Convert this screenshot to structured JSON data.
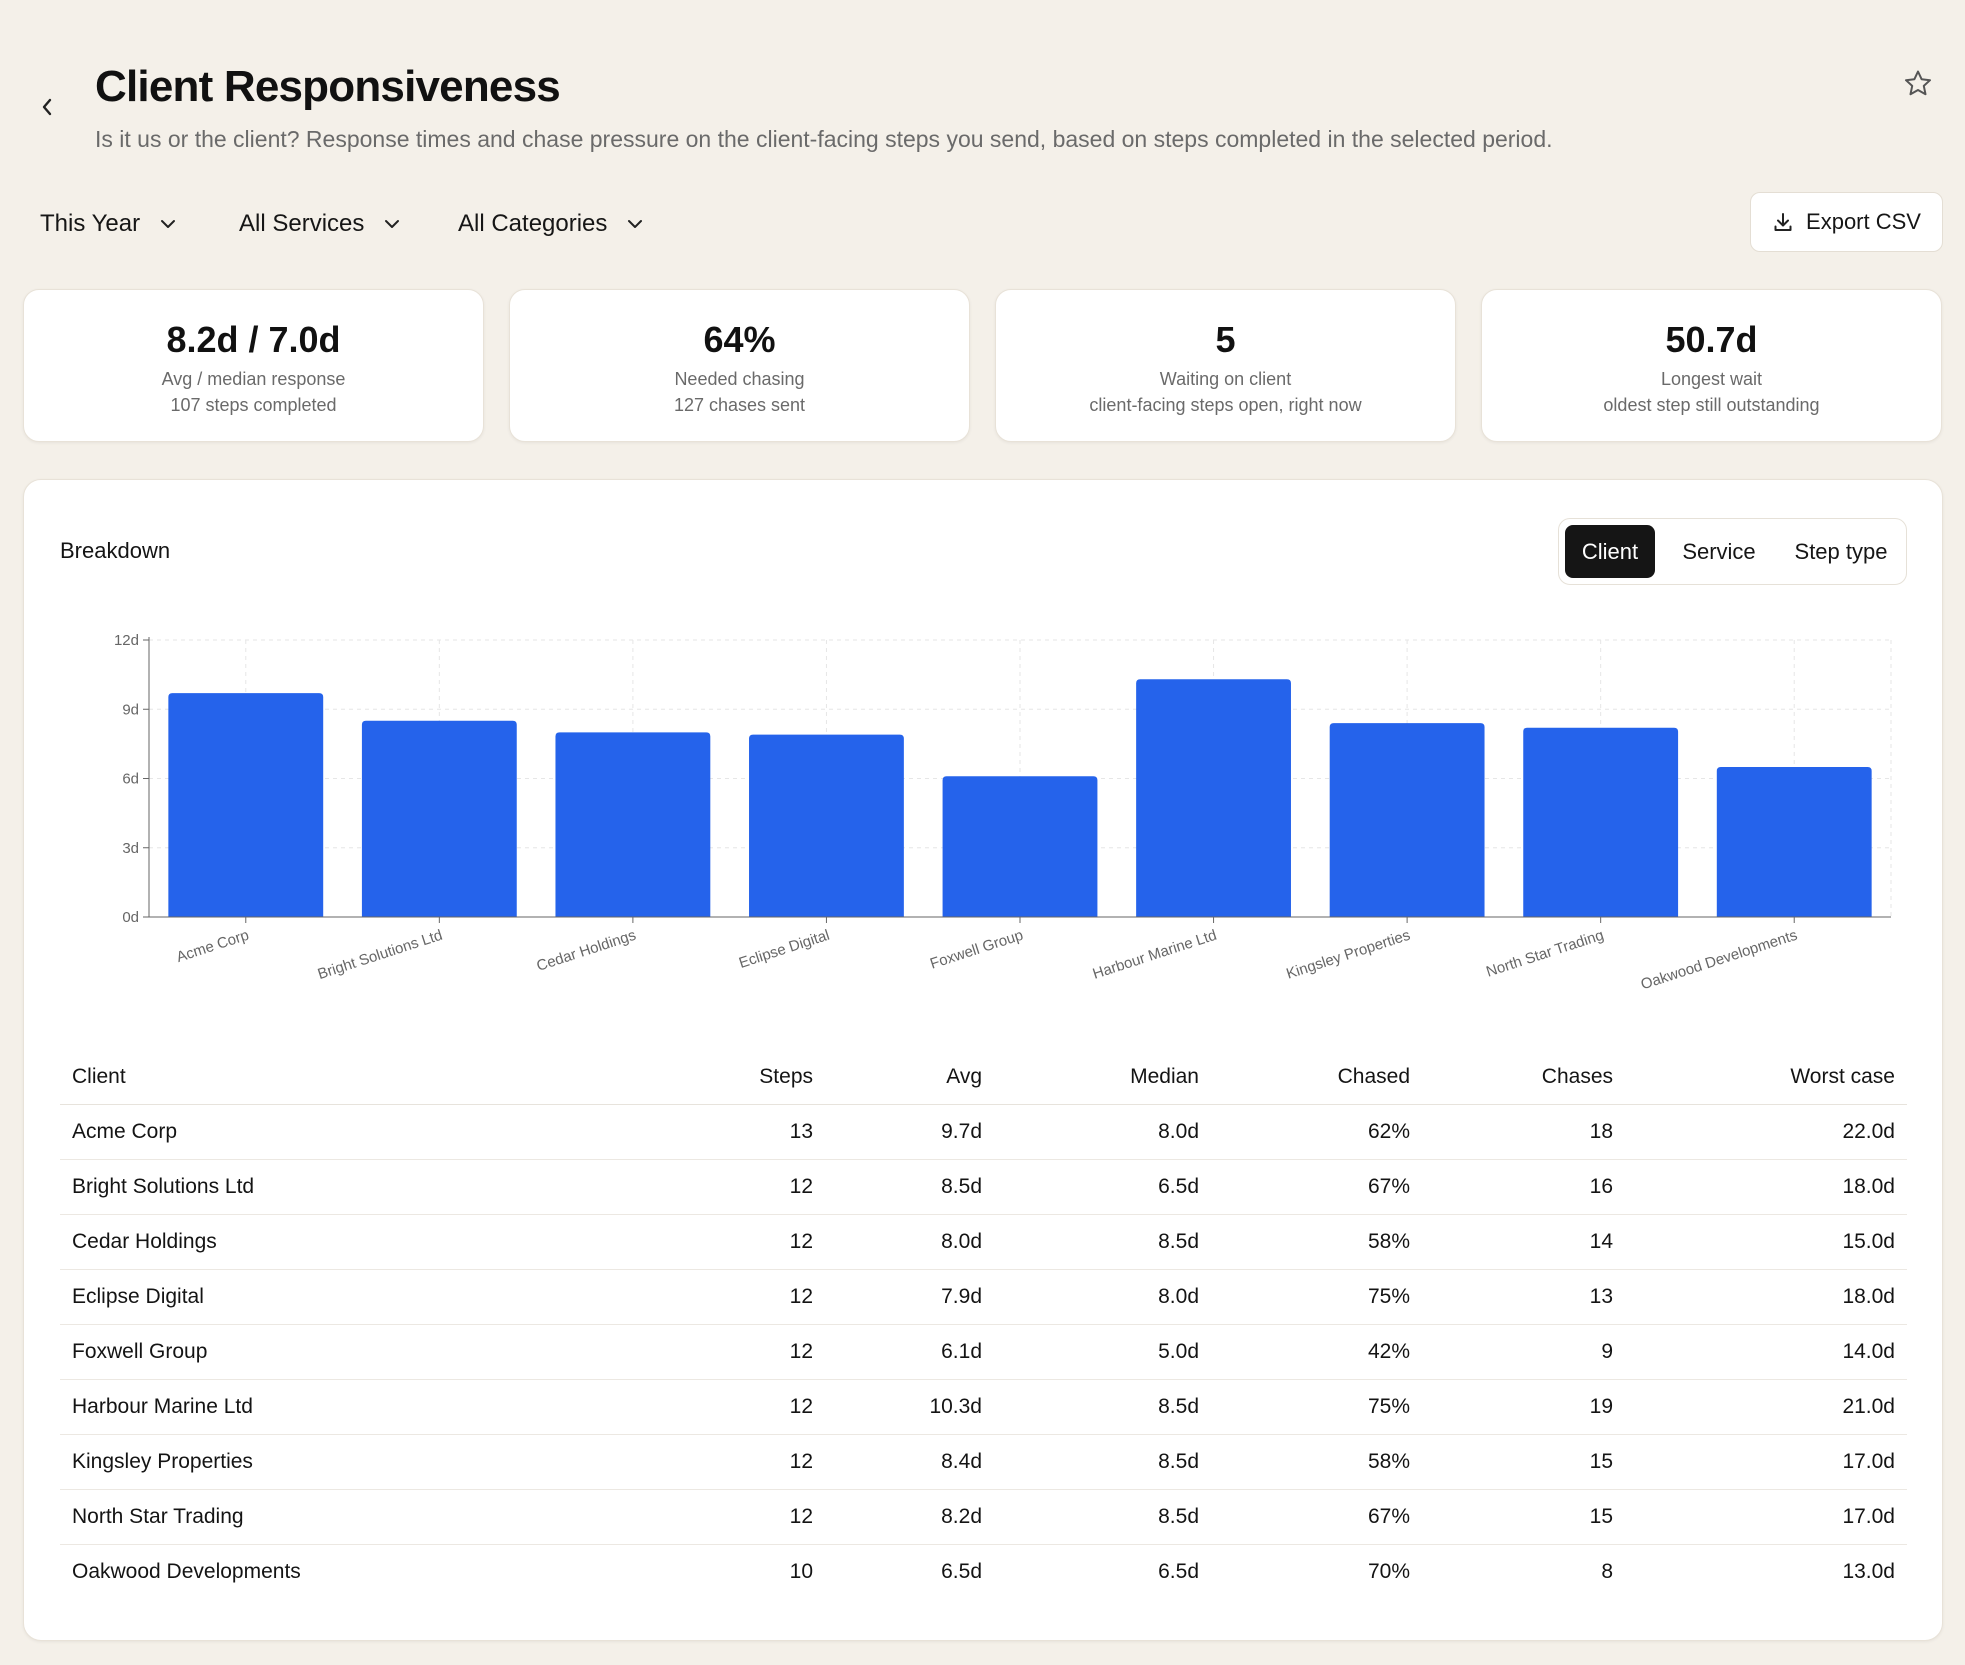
{
  "header": {
    "title": "Client Responsiveness",
    "subtitle": "Is it us or the client? Response times and chase pressure on the client-facing steps you send, based on steps completed in the selected period."
  },
  "filters": {
    "period": "This Year",
    "services": "All Services",
    "categories": "All Categories",
    "export_label": "Export CSV"
  },
  "kpis": [
    {
      "value": "8.2d / 7.0d",
      "label": "Avg / median response",
      "sub": "107 steps completed"
    },
    {
      "value": "64%",
      "label": "Needed chasing",
      "sub": "127 chases sent"
    },
    {
      "value": "5",
      "label": "Waiting on client",
      "sub": "client-facing steps open, right now"
    },
    {
      "value": "50.7d",
      "label": "Longest wait",
      "sub": "oldest step still outstanding"
    }
  ],
  "breakdown": {
    "title": "Breakdown",
    "tabs": [
      "Client",
      "Service",
      "Step type"
    ],
    "active_tab": "Client"
  },
  "colors": {
    "bar": "#2563eb",
    "accent_link": "#2563eb",
    "background": "#f4f0e9"
  },
  "chart_data": {
    "type": "bar",
    "categories": [
      "Acme Corp",
      "Bright Solutions Ltd",
      "Cedar Holdings",
      "Eclipse Digital",
      "Foxwell Group",
      "Harbour Marine Ltd",
      "Kingsley Properties",
      "North Star Trading",
      "Oakwood Developments"
    ],
    "values": [
      9.7,
      8.5,
      8.0,
      7.9,
      6.1,
      10.3,
      8.4,
      8.2,
      6.5
    ],
    "ylim": [
      0,
      12
    ],
    "yticks": [
      "0d",
      "3d",
      "6d",
      "9d",
      "12d"
    ],
    "grid": true
  },
  "table": {
    "columns": [
      "Client",
      "Steps",
      "Avg",
      "Median",
      "Chased",
      "Chases",
      "Worst case"
    ],
    "rows": [
      [
        "Acme Corp",
        "13",
        "9.7d",
        "8.0d",
        "62%",
        "18",
        "22.0d"
      ],
      [
        "Bright Solutions Ltd",
        "12",
        "8.5d",
        "6.5d",
        "67%",
        "16",
        "18.0d"
      ],
      [
        "Cedar Holdings",
        "12",
        "8.0d",
        "8.5d",
        "58%",
        "14",
        "15.0d"
      ],
      [
        "Eclipse Digital",
        "12",
        "7.9d",
        "8.0d",
        "75%",
        "13",
        "18.0d"
      ],
      [
        "Foxwell Group",
        "12",
        "6.1d",
        "5.0d",
        "42%",
        "9",
        "14.0d"
      ],
      [
        "Harbour Marine Ltd",
        "12",
        "10.3d",
        "8.5d",
        "75%",
        "19",
        "21.0d"
      ],
      [
        "Kingsley Properties",
        "12",
        "8.4d",
        "8.5d",
        "58%",
        "15",
        "17.0d"
      ],
      [
        "North Star Trading",
        "12",
        "8.2d",
        "8.5d",
        "67%",
        "15",
        "17.0d"
      ],
      [
        "Oakwood Developments",
        "10",
        "6.5d",
        "6.5d",
        "70%",
        "8",
        "13.0d"
      ]
    ]
  }
}
